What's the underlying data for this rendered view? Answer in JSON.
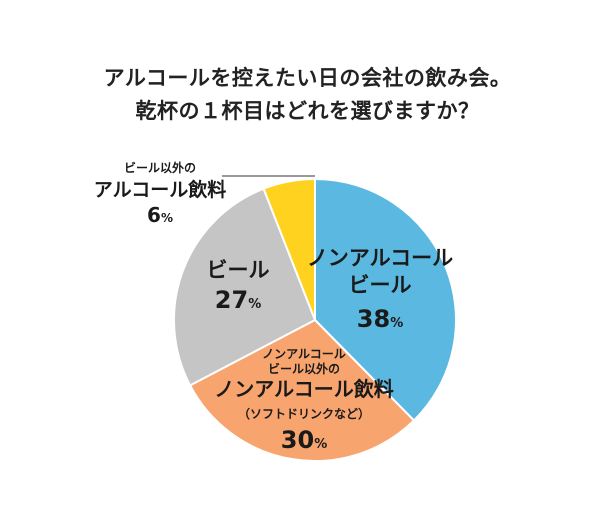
{
  "chart_data": {
    "type": "pie",
    "title_line1": "アルコールを控えたい日の会社の飲み会。",
    "title_line2": "乾杯の１杯目はどれを選びますか？",
    "slices": [
      {
        "key": "nonal_beer",
        "lines": [
          "ノンアルコール",
          "ビール"
        ],
        "value": 38,
        "pct_label": "38",
        "color": "#5BB8E0"
      },
      {
        "key": "nonal_other",
        "small": [
          "ノンアルコール",
          "ビール以外の"
        ],
        "main": "ノンアルコール飲料",
        "sub": "（ソフトドリンクなど）",
        "value": 30,
        "pct_label": "30",
        "color": "#F7A46E"
      },
      {
        "key": "beer",
        "lines": [
          "ビール"
        ],
        "value": 27,
        "pct_label": "27",
        "color": "#C5C5C5"
      },
      {
        "key": "alc_other",
        "small": [
          "ビール以外の"
        ],
        "main": "アルコール飲料",
        "value": 6,
        "pct_label": "6",
        "color": "#FFD21F"
      }
    ],
    "percent_symbol": "%"
  }
}
